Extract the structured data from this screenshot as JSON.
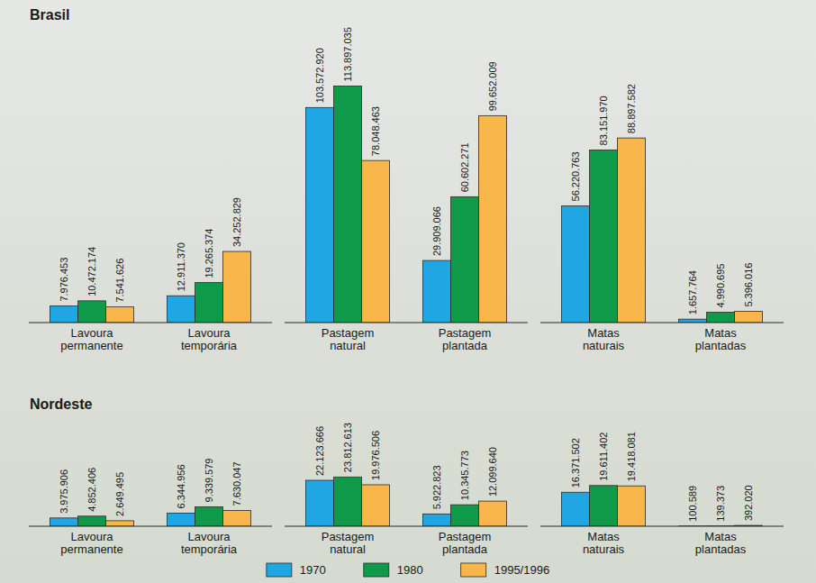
{
  "chart_data": [
    {
      "type": "bar",
      "title": "Brasil",
      "categories": [
        "Lavoura permanente",
        "Lavoura temporária",
        "Pastagem natural",
        "Pastagem plantada",
        "Matas naturais",
        "Matas plantadas"
      ],
      "series": [
        {
          "name": "1970",
          "color": "#1fa6e3",
          "values": [
            7976453,
            12911370,
            103572920,
            29909066,
            56220763,
            1657764
          ],
          "value_labels": [
            "7.976.453",
            "12.911.370",
            "103.572.920",
            "29.909.066",
            "56.220.763",
            "1.657.764"
          ]
        },
        {
          "name": "1980",
          "color": "#0f9a4a",
          "values": [
            10472174,
            19265374,
            113897035,
            60602271,
            83151970,
            4990695
          ],
          "value_labels": [
            "10.472.174",
            "19.265.374",
            "113.897.035",
            "60.602.271",
            "83.151.970",
            "4.990.695"
          ]
        },
        {
          "name": "1995/1996",
          "color": "#f9b64b",
          "values": [
            7541626,
            34252829,
            78048463,
            99652009,
            88897582,
            5396016
          ],
          "value_labels": [
            "7.541.626",
            "34.252.829",
            "78.048.463",
            "99.652.009",
            "88.897.582",
            "5.396.016"
          ]
        }
      ],
      "ylim": [
        0,
        115000000
      ],
      "grid": false,
      "tick_labels": false,
      "data_labels": true
    },
    {
      "type": "bar",
      "title": "Nordeste",
      "categories": [
        "Lavoura permanente",
        "Lavoura temporária",
        "Pastagem natural",
        "Pastagem plantada",
        "Matas naturais",
        "Matas plantadas"
      ],
      "series": [
        {
          "name": "1970",
          "color": "#1fa6e3",
          "values": [
            3975906,
            6344956,
            22123666,
            5922823,
            16371502,
            100589
          ],
          "value_labels": [
            "3.975.906",
            "6.344.956",
            "22.123.666",
            "5.922.823",
            "16.371.502",
            "100.589"
          ]
        },
        {
          "name": "1980",
          "color": "#0f9a4a",
          "values": [
            4852406,
            9339579,
            23812613,
            10345773,
            19611402,
            139373
          ],
          "value_labels": [
            "4.852.406",
            "9.339.579",
            "23.812.613",
            "10.345.773",
            "19.611.402",
            "139.373"
          ]
        },
        {
          "name": "1995/1996",
          "color": "#f9b64b",
          "values": [
            2649495,
            7630047,
            19976506,
            12099640,
            19418081,
            392020
          ],
          "value_labels": [
            "2.649.495",
            "7.630.047",
            "19.976.506",
            "12.099.640",
            "19.418.081",
            "392.020"
          ]
        }
      ],
      "ylim": [
        0,
        24000000
      ],
      "grid": false,
      "tick_labels": false,
      "data_labels": true,
      "legend": "bottom"
    }
  ]
}
